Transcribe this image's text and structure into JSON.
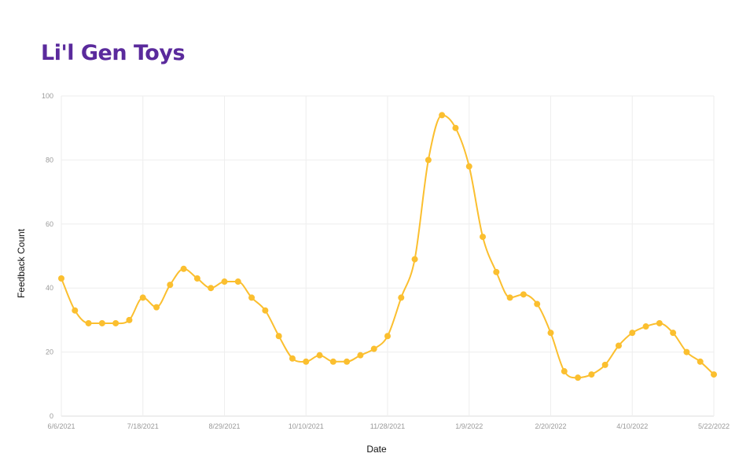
{
  "chart_data": {
    "type": "line",
    "title": "Li'l Gen Toys",
    "xlabel": "Date",
    "ylabel": "Feedback Count",
    "ylim": [
      0,
      100
    ],
    "yticks": [
      0,
      20,
      40,
      60,
      80,
      100
    ],
    "x_tick_labels": [
      "6/6/2021",
      "7/18/2021",
      "8/29/2021",
      "10/10/2021",
      "11/28/2021",
      "1/9/2022",
      "2/20/2022",
      "4/10/2022",
      "5/22/2022"
    ],
    "x_tick_indices": [
      0,
      6,
      12,
      18,
      24,
      30,
      36,
      42,
      48
    ],
    "grid": true,
    "color": "#fbbf2f",
    "series": [
      {
        "name": "Feedback Count",
        "values": [
          43,
          33,
          29,
          29,
          29,
          30,
          37,
          34,
          41,
          46,
          43,
          40,
          42,
          42,
          37,
          33,
          25,
          18,
          17,
          19,
          17,
          17,
          19,
          21,
          25,
          37,
          49,
          80,
          94,
          90,
          78,
          56,
          45,
          37,
          38,
          35,
          26,
          14,
          12,
          13,
          16,
          22,
          26,
          28,
          29,
          26,
          20,
          17,
          13
        ]
      }
    ]
  }
}
